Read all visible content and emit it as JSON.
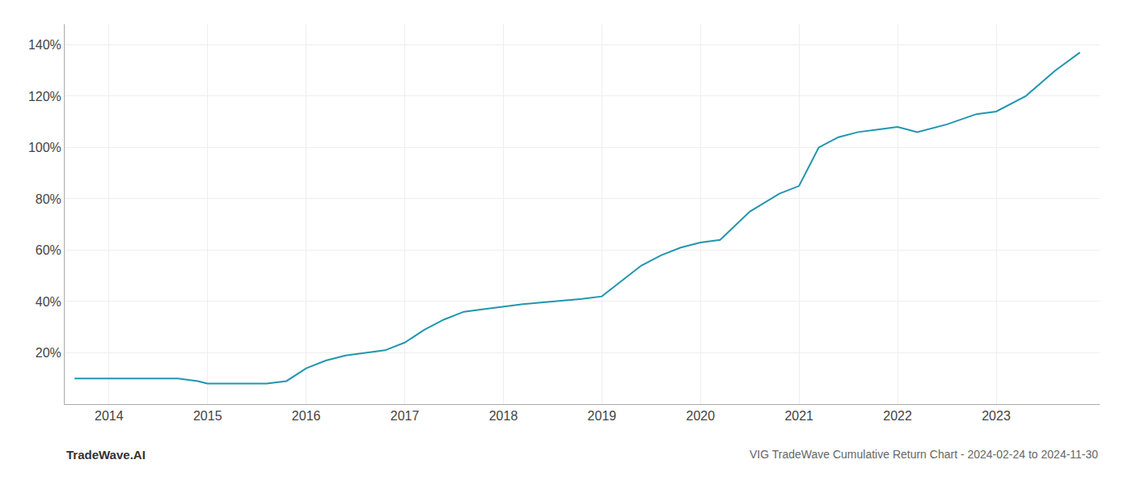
{
  "chart_data": {
    "type": "line",
    "title": "VIG TradeWave Cumulative Return Chart - 2024-02-24 to 2024-11-30",
    "annotations": [
      "TradeWave.AI"
    ],
    "x": [
      2013.65,
      2013.75,
      2013.85,
      2013.95,
      2014.1,
      2014.3,
      2014.5,
      2014.7,
      2014.9,
      2015.0,
      2015.1,
      2015.2,
      2015.4,
      2015.6,
      2015.8,
      2016.0,
      2016.2,
      2016.4,
      2016.6,
      2016.8,
      2017.0,
      2017.2,
      2017.4,
      2017.6,
      2017.8,
      2018.0,
      2018.2,
      2018.5,
      2018.8,
      2019.0,
      2019.2,
      2019.4,
      2019.6,
      2019.8,
      2020.0,
      2020.2,
      2020.5,
      2020.8,
      2021.0,
      2021.2,
      2021.4,
      2021.6,
      2021.8,
      2022.0,
      2022.2,
      2022.5,
      2022.8,
      2023.0,
      2023.3,
      2023.6,
      2023.85
    ],
    "values": [
      10,
      10,
      10,
      10,
      10,
      10,
      10,
      10,
      9,
      8,
      8,
      8,
      8,
      8,
      9,
      14,
      17,
      19,
      20,
      21,
      24,
      29,
      33,
      36,
      37,
      38,
      39,
      40,
      41,
      42,
      48,
      54,
      58,
      61,
      63,
      64,
      75,
      82,
      85,
      100,
      104,
      106,
      107,
      108,
      106,
      109,
      113,
      114,
      120,
      130,
      137
    ],
    "color": "#2196b0",
    "xlim": [
      2013.55,
      2024.05
    ],
    "xticks": [
      2014,
      2015,
      2016,
      2017,
      2018,
      2019,
      2020,
      2021,
      2022,
      2023
    ],
    "ylim": [
      0,
      148
    ],
    "yticks": [
      {
        "value": 20,
        "label": "20%"
      },
      {
        "value": 40,
        "label": "40%"
      },
      {
        "value": 60,
        "label": "60%"
      },
      {
        "value": 80,
        "label": "80%"
      },
      {
        "value": 100,
        "label": "100%"
      },
      {
        "value": 120,
        "label": "120%"
      },
      {
        "value": 140,
        "label": "140%"
      }
    ],
    "grid": true
  }
}
